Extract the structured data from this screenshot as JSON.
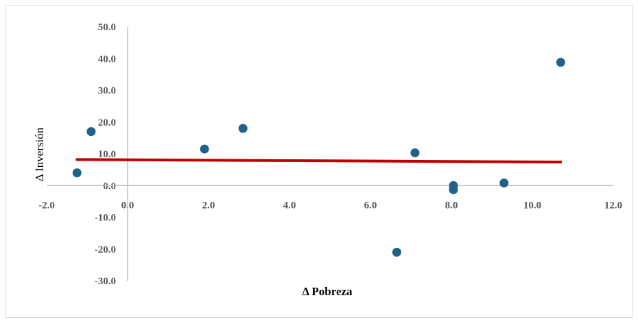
{
  "chart_data": {
    "type": "scatter",
    "title": "",
    "xlabel": "Δ Pobreza",
    "ylabel": "Δ Inversión",
    "xlim": [
      -2.0,
      12.0
    ],
    "ylim": [
      -30.0,
      50.0
    ],
    "x_ticks": [
      -2.0,
      0.0,
      2.0,
      4.0,
      6.0,
      8.0,
      10.0,
      12.0
    ],
    "y_ticks": [
      -30.0,
      -20.0,
      -10.0,
      0.0,
      10.0,
      20.0,
      30.0,
      40.0,
      50.0
    ],
    "x_tick_labels": [
      "-2.0",
      "0.0",
      "2.0",
      "4.0",
      "6.0",
      "8.0",
      "10.0",
      "12.0"
    ],
    "y_tick_labels": [
      "-30.0",
      "-20.0",
      "-10.0",
      "0.0",
      "10.0",
      "20.0",
      "30.0",
      "40.0",
      "50.0"
    ],
    "grid": false,
    "legend": "none",
    "series": [
      {
        "type": "scatter",
        "color": "#1f6188",
        "points": [
          {
            "x": -1.25,
            "y": 4.0
          },
          {
            "x": -0.9,
            "y": 17.0
          },
          {
            "x": 1.9,
            "y": 11.5
          },
          {
            "x": 2.85,
            "y": 18.0
          },
          {
            "x": 6.65,
            "y": -21.0
          },
          {
            "x": 7.1,
            "y": 10.3
          },
          {
            "x": 8.05,
            "y": 0.0
          },
          {
            "x": 8.05,
            "y": -1.3
          },
          {
            "x": 9.3,
            "y": 0.8
          },
          {
            "x": 10.7,
            "y": 38.8
          }
        ]
      },
      {
        "type": "trendline",
        "color": "#c00000",
        "points": [
          {
            "x": -1.25,
            "y": 8.2
          },
          {
            "x": 10.7,
            "y": 7.4
          }
        ]
      }
    ]
  }
}
